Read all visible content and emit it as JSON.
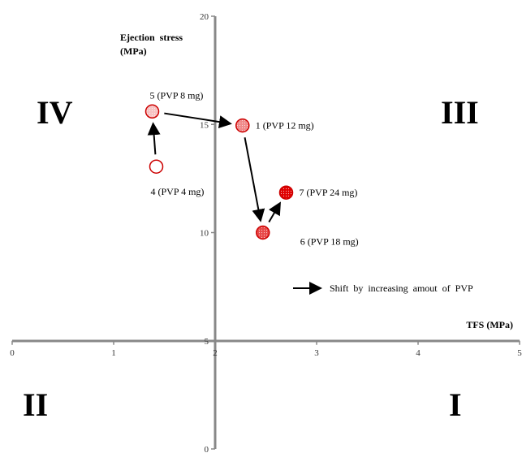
{
  "chart_data": {
    "type": "scatter",
    "xlabel": "TFS (MPa)",
    "ylabel_line1": "Ejection  stress",
    "ylabel_line2": "(MPa)",
    "xlim": [
      0,
      5
    ],
    "ylim": [
      0,
      20
    ],
    "x_cross": 2,
    "y_cross": 5,
    "x_ticks": [
      "0",
      "1",
      "2",
      "3",
      "4",
      "5"
    ],
    "y_ticks": [
      "0",
      "5",
      "10",
      "15",
      "20"
    ],
    "quadrants": [
      "I",
      "II",
      "III",
      "IV"
    ],
    "points": [
      {
        "id": "4",
        "label": "4 (PVP 4 mg)",
        "x": 1.42,
        "y": 13.05,
        "fill": "#ffffff",
        "label_pos": "below"
      },
      {
        "id": "5",
        "label": "5 (PVP 8 mg)",
        "x": 1.38,
        "y": 15.6,
        "fill": "#f7c2c2",
        "label_pos": "above"
      },
      {
        "id": "1",
        "label": "1 (PVP 12 mg)",
        "x": 2.27,
        "y": 14.95,
        "fill": "#f08a8a",
        "label_pos": "right"
      },
      {
        "id": "6",
        "label": "6 (PVP 18 mg)",
        "x": 2.47,
        "y": 10.0,
        "fill": "#e84848",
        "label_pos": "below-right"
      },
      {
        "id": "7",
        "label": "7 (PVP 24 mg)",
        "x": 2.7,
        "y": 11.85,
        "fill": "#e00000",
        "label_pos": "right"
      }
    ],
    "arrow_sequence": [
      "4",
      "5",
      "1",
      "6",
      "7"
    ],
    "legend": {
      "text": "Shift  by  increasing  amout  of  PVP",
      "marker": "arrow"
    },
    "grid": false
  }
}
